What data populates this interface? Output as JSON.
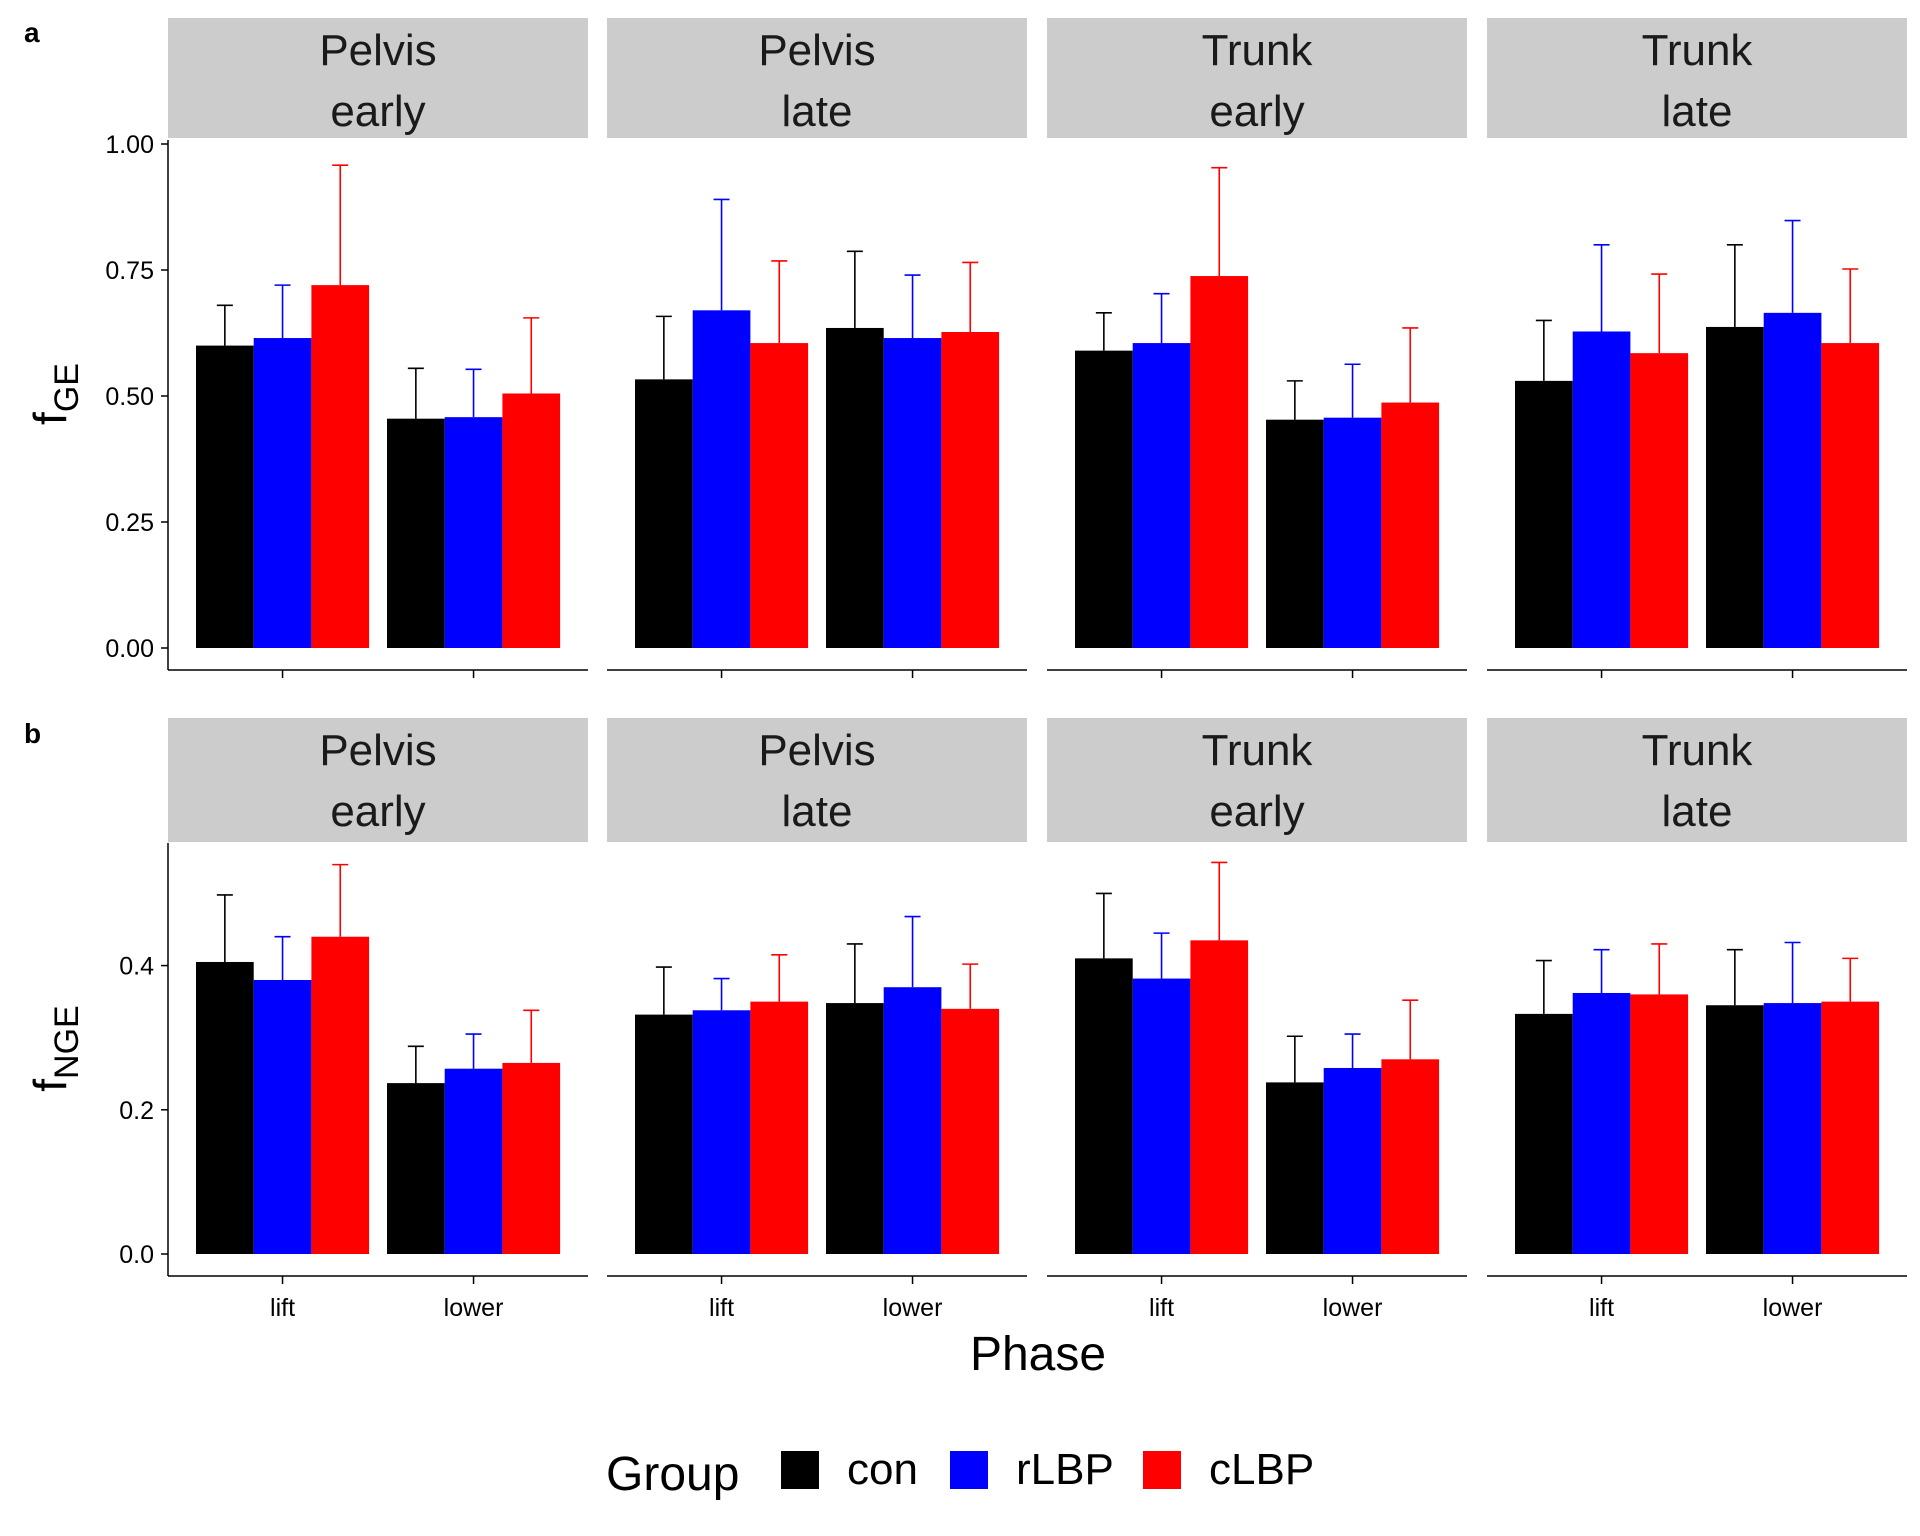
{
  "figure": {
    "xlabel": "Phase",
    "legend_title": "Group",
    "panel_labels": [
      "a",
      "b"
    ]
  },
  "colors": {
    "con": "#000000",
    "rLBP": "#0000ff",
    "cLBP": "#ff0000",
    "strip": "#cccccc"
  },
  "chart_data": [
    {
      "type": "bar",
      "panel_label": "a",
      "ylabel_main": "f",
      "ylabel_sub": "GE",
      "ylim": [
        0,
        1.0
      ],
      "yticks": [
        "0.00",
        "0.25",
        "0.50",
        "0.75",
        "1.00"
      ],
      "ytick_values": [
        0,
        0.25,
        0.5,
        0.75,
        1.0
      ],
      "categories": [
        "lift",
        "lower"
      ],
      "groups": [
        "con",
        "rLBP",
        "cLBP"
      ],
      "facets": [
        {
          "title": [
            "Pelvis",
            "early"
          ],
          "series": [
            {
              "name": "con",
              "values": [
                0.6,
                0.455
              ],
              "err": [
                0.68,
                0.555
              ]
            },
            {
              "name": "rLBP",
              "values": [
                0.615,
                0.458
              ],
              "err": [
                0.72,
                0.553
              ]
            },
            {
              "name": "cLBP",
              "values": [
                0.72,
                0.505
              ],
              "err": [
                0.958,
                0.655
              ]
            }
          ]
        },
        {
          "title": [
            "Pelvis",
            "late"
          ],
          "series": [
            {
              "name": "con",
              "values": [
                0.533,
                0.635
              ],
              "err": [
                0.658,
                0.787
              ]
            },
            {
              "name": "rLBP",
              "values": [
                0.67,
                0.615
              ],
              "err": [
                0.89,
                0.74
              ]
            },
            {
              "name": "cLBP",
              "values": [
                0.605,
                0.627
              ],
              "err": [
                0.768,
                0.765
              ]
            }
          ]
        },
        {
          "title": [
            "Trunk",
            "early"
          ],
          "series": [
            {
              "name": "con",
              "values": [
                0.59,
                0.453
              ],
              "err": [
                0.665,
                0.53
              ]
            },
            {
              "name": "rLBP",
              "values": [
                0.605,
                0.457
              ],
              "err": [
                0.703,
                0.563
              ]
            },
            {
              "name": "cLBP",
              "values": [
                0.738,
                0.487
              ],
              "err": [
                0.953,
                0.635
              ]
            }
          ]
        },
        {
          "title": [
            "Trunk",
            "late"
          ],
          "series": [
            {
              "name": "con",
              "values": [
                0.53,
                0.637
              ],
              "err": [
                0.65,
                0.8
              ]
            },
            {
              "name": "rLBP",
              "values": [
                0.628,
                0.665
              ],
              "err": [
                0.8,
                0.848
              ]
            },
            {
              "name": "cLBP",
              "values": [
                0.585,
                0.605
              ],
              "err": [
                0.742,
                0.752
              ]
            }
          ]
        }
      ]
    },
    {
      "type": "bar",
      "panel_label": "b",
      "ylabel_main": "f",
      "ylabel_sub": "NGE",
      "ylim": [
        0,
        0.57
      ],
      "yticks": [
        "0.0",
        "0.2",
        "0.4"
      ],
      "ytick_values": [
        0,
        0.2,
        0.4
      ],
      "categories": [
        "lift",
        "lower"
      ],
      "groups": [
        "con",
        "rLBP",
        "cLBP"
      ],
      "facets": [
        {
          "title": [
            "Pelvis",
            "early"
          ],
          "series": [
            {
              "name": "con",
              "values": [
                0.405,
                0.237
              ],
              "err": [
                0.498,
                0.288
              ]
            },
            {
              "name": "rLBP",
              "values": [
                0.38,
                0.257
              ],
              "err": [
                0.44,
                0.305
              ]
            },
            {
              "name": "cLBP",
              "values": [
                0.44,
                0.265
              ],
              "err": [
                0.54,
                0.338
              ]
            }
          ]
        },
        {
          "title": [
            "Pelvis",
            "late"
          ],
          "series": [
            {
              "name": "con",
              "values": [
                0.332,
                0.348
              ],
              "err": [
                0.398,
                0.43
              ]
            },
            {
              "name": "rLBP",
              "values": [
                0.338,
                0.37
              ],
              "err": [
                0.382,
                0.468
              ]
            },
            {
              "name": "cLBP",
              "values": [
                0.35,
                0.34
              ],
              "err": [
                0.415,
                0.402
              ]
            }
          ]
        },
        {
          "title": [
            "Trunk",
            "early"
          ],
          "series": [
            {
              "name": "con",
              "values": [
                0.41,
                0.238
              ],
              "err": [
                0.5,
                0.302
              ]
            },
            {
              "name": "rLBP",
              "values": [
                0.382,
                0.258
              ],
              "err": [
                0.445,
                0.305
              ]
            },
            {
              "name": "cLBP",
              "values": [
                0.435,
                0.27
              ],
              "err": [
                0.543,
                0.352
              ]
            }
          ]
        },
        {
          "title": [
            "Trunk",
            "late"
          ],
          "series": [
            {
              "name": "con",
              "values": [
                0.333,
                0.345
              ],
              "err": [
                0.407,
                0.422
              ]
            },
            {
              "name": "rLBP",
              "values": [
                0.362,
                0.348
              ],
              "err": [
                0.422,
                0.432
              ]
            },
            {
              "name": "cLBP",
              "values": [
                0.36,
                0.35
              ],
              "err": [
                0.43,
                0.41
              ]
            }
          ]
        }
      ]
    }
  ]
}
